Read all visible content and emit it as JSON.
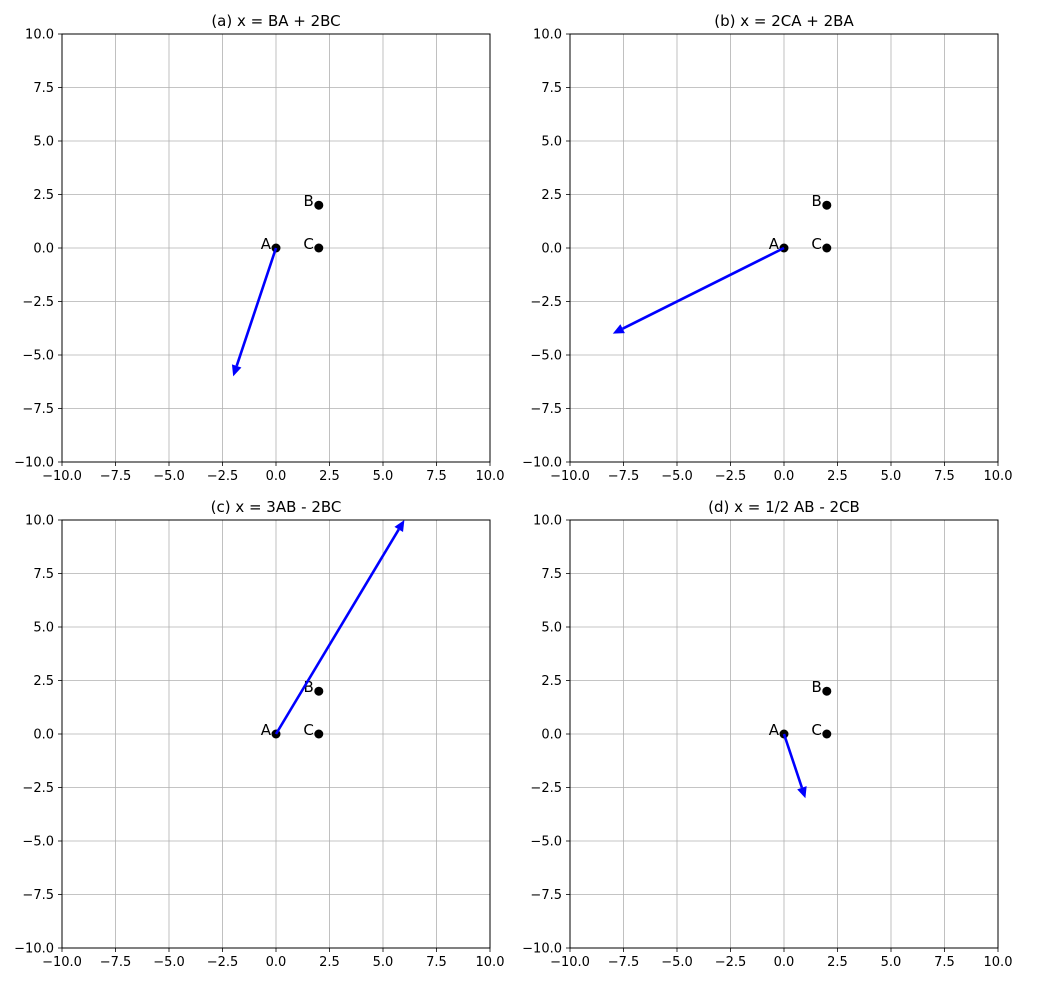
{
  "chart_data": [
    {
      "type": "quiver",
      "title": "(a) x = BA + 2BC",
      "xlim": [
        -10,
        10
      ],
      "ylim": [
        -10,
        10
      ],
      "xticks": [
        -10.0,
        -7.5,
        -5.0,
        -2.5,
        0.0,
        2.5,
        5.0,
        7.5,
        10.0
      ],
      "yticks": [
        -10.0,
        -7.5,
        -5.0,
        -2.5,
        0.0,
        2.5,
        5.0,
        7.5,
        10.0
      ],
      "grid": true,
      "points": [
        {
          "label": "A",
          "x": 0,
          "y": 0
        },
        {
          "label": "B",
          "x": 2,
          "y": 2
        },
        {
          "label": "C",
          "x": 2,
          "y": 0
        }
      ],
      "vector": {
        "x0": 0,
        "y0": 0,
        "dx": -2,
        "dy": -6,
        "color": "#0000ff"
      }
    },
    {
      "type": "quiver",
      "title": "(b) x = 2CA + 2BA",
      "xlim": [
        -10,
        10
      ],
      "ylim": [
        -10,
        10
      ],
      "xticks": [
        -10.0,
        -7.5,
        -5.0,
        -2.5,
        0.0,
        2.5,
        5.0,
        7.5,
        10.0
      ],
      "yticks": [
        -10.0,
        -7.5,
        -5.0,
        -2.5,
        0.0,
        2.5,
        5.0,
        7.5,
        10.0
      ],
      "grid": true,
      "points": [
        {
          "label": "A",
          "x": 0,
          "y": 0
        },
        {
          "label": "B",
          "x": 2,
          "y": 2
        },
        {
          "label": "C",
          "x": 2,
          "y": 0
        }
      ],
      "vector": {
        "x0": 0,
        "y0": 0,
        "dx": -8,
        "dy": -4,
        "color": "#0000ff"
      }
    },
    {
      "type": "quiver",
      "title": "(c) x = 3AB - 2BC",
      "xlim": [
        -10,
        10
      ],
      "ylim": [
        -10,
        10
      ],
      "xticks": [
        -10.0,
        -7.5,
        -5.0,
        -2.5,
        0.0,
        2.5,
        5.0,
        7.5,
        10.0
      ],
      "yticks": [
        -10.0,
        -7.5,
        -5.0,
        -2.5,
        0.0,
        2.5,
        5.0,
        7.5,
        10.0
      ],
      "grid": true,
      "points": [
        {
          "label": "A",
          "x": 0,
          "y": 0
        },
        {
          "label": "B",
          "x": 2,
          "y": 2
        },
        {
          "label": "C",
          "x": 2,
          "y": 0
        }
      ],
      "vector": {
        "x0": 0,
        "y0": 0,
        "dx": 6,
        "dy": 10,
        "color": "#0000ff"
      }
    },
    {
      "type": "quiver",
      "title": "(d) x = 1/2 AB - 2CB",
      "xlim": [
        -10,
        10
      ],
      "ylim": [
        -10,
        10
      ],
      "xticks": [
        -10.0,
        -7.5,
        -5.0,
        -2.5,
        0.0,
        2.5,
        5.0,
        7.5,
        10.0
      ],
      "yticks": [
        -10.0,
        -7.5,
        -5.0,
        -2.5,
        0.0,
        2.5,
        5.0,
        7.5,
        10.0
      ],
      "grid": true,
      "points": [
        {
          "label": "A",
          "x": 0,
          "y": 0
        },
        {
          "label": "B",
          "x": 2,
          "y": 2
        },
        {
          "label": "C",
          "x": 2,
          "y": 0
        }
      ],
      "vector": {
        "x0": 0,
        "y0": 0,
        "dx": 1,
        "dy": -3,
        "color": "#0000ff"
      }
    }
  ]
}
